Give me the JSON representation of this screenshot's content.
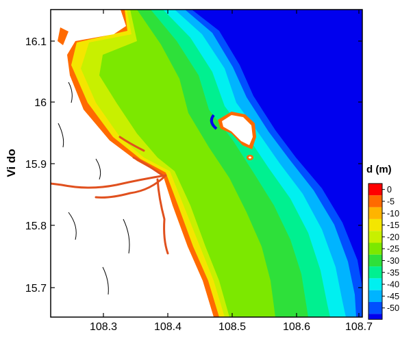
{
  "map": {
    "ylabel": "Vi do",
    "x_ticks": [
      "108.3",
      "108.4",
      "108.5",
      "108.6",
      "108.7"
    ],
    "y_ticks": [
      "16.1",
      "16",
      "15.9",
      "15.8",
      "15.7"
    ]
  },
  "legend": {
    "title": "d (m)",
    "levels": [
      {
        "label": "0",
        "color": "#ff0000"
      },
      {
        "label": "-5",
        "color": "#ff6a00"
      },
      {
        "label": "-10",
        "color": "#ffb400"
      },
      {
        "label": "-15",
        "color": "#f4e600"
      },
      {
        "label": "-20",
        "color": "#c8f000"
      },
      {
        "label": "-25",
        "color": "#7ce800"
      },
      {
        "label": "-30",
        "color": "#2ee03a"
      },
      {
        "label": "-35",
        "color": "#00f090"
      },
      {
        "label": "-40",
        "color": "#00f0f0"
      },
      {
        "label": "-45",
        "color": "#00b4ff"
      },
      {
        "label": "-50",
        "color": "#0050ff"
      }
    ],
    "bottom_color": "#0000ee"
  }
}
